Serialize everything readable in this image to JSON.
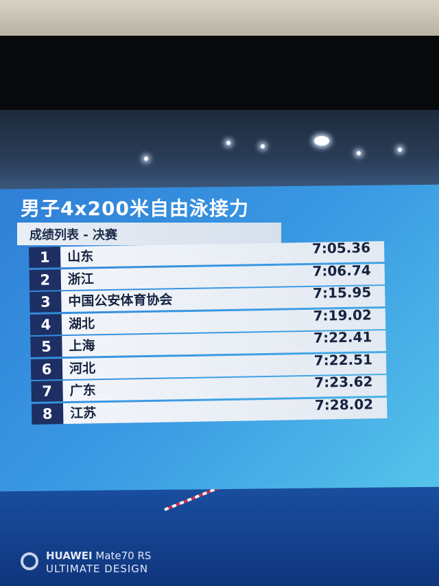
{
  "graphic": {
    "title": "男子4x200米自由泳接力",
    "subtitle": "成绩列表 - 决赛",
    "results": [
      {
        "rank": "1",
        "team": "山东",
        "time": "7:05.36"
      },
      {
        "rank": "2",
        "team": "浙江",
        "time": "7:06.74"
      },
      {
        "rank": "3",
        "team": "中国公安体育协会",
        "time": "7:15.95"
      },
      {
        "rank": "4",
        "team": "湖北",
        "time": "7:19.02"
      },
      {
        "rank": "5",
        "team": "上海",
        "time": "7:22.41"
      },
      {
        "rank": "6",
        "team": "河北",
        "time": "7:22.51"
      },
      {
        "rank": "7",
        "team": "广东",
        "time": "7:23.62"
      },
      {
        "rank": "8",
        "team": "江苏",
        "time": "7:28.02"
      }
    ],
    "colors": {
      "panel": "#3a9ae3",
      "rank_box": "#1d2f63",
      "row": "#eef2f8"
    }
  },
  "watermark": {
    "brand": "HUAWEI",
    "model": "Mate70 RS",
    "tagline": "ULTIMATE DESIGN"
  }
}
